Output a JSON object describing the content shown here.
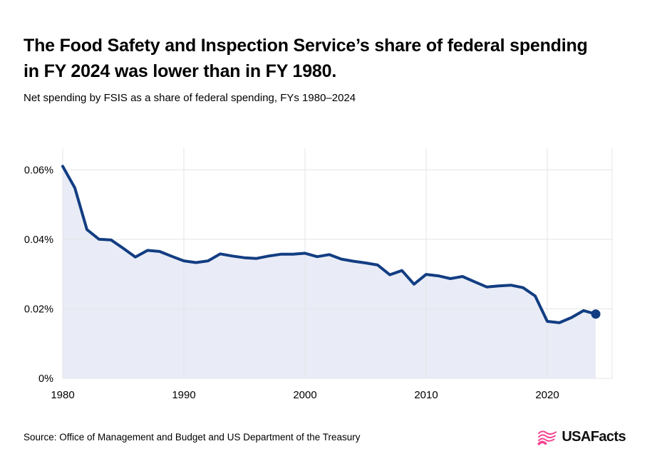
{
  "header": {
    "title": "The Food Safety and Inspection Service’s share of federal spending in FY 2024 was lower than in FY 1980.",
    "subtitle": "Net spending by FSIS as a share of federal spending, FYs 1980–2024"
  },
  "chart_data": {
    "type": "area",
    "title": "Net spending by FSIS as a share of federal spending, FYs 1980–2024",
    "xlabel": "",
    "ylabel": "",
    "unit": "% of federal spending",
    "x": [
      1980,
      1981,
      1982,
      1983,
      1984,
      1985,
      1986,
      1987,
      1988,
      1989,
      1990,
      1991,
      1992,
      1993,
      1994,
      1995,
      1996,
      1997,
      1998,
      1999,
      2000,
      2001,
      2002,
      2003,
      2004,
      2005,
      2006,
      2007,
      2008,
      2009,
      2010,
      2011,
      2012,
      2013,
      2014,
      2015,
      2016,
      2017,
      2018,
      2019,
      2020,
      2021,
      2022,
      2023,
      2024
    ],
    "values": [
      0.061,
      0.0548,
      0.0428,
      0.04,
      0.0398,
      0.0374,
      0.0349,
      0.0368,
      0.0365,
      0.0351,
      0.0338,
      0.0333,
      0.0338,
      0.0358,
      0.0352,
      0.0347,
      0.0345,
      0.0352,
      0.0357,
      0.0357,
      0.036,
      0.035,
      0.0356,
      0.0343,
      0.0337,
      0.0332,
      0.0326,
      0.0298,
      0.031,
      0.0271,
      0.0299,
      0.0295,
      0.0287,
      0.0293,
      0.0278,
      0.0263,
      0.0266,
      0.0268,
      0.0261,
      0.0237,
      0.0164,
      0.016,
      0.0175,
      0.0195,
      0.0185
    ],
    "x_ticks": [
      {
        "value": 1980,
        "label": "1980"
      },
      {
        "value": 1990,
        "label": "1990"
      },
      {
        "value": 2000,
        "label": "2000"
      },
      {
        "value": 2010,
        "label": "2010"
      },
      {
        "value": 2020,
        "label": "2020"
      }
    ],
    "y_ticks": [
      {
        "value": 0,
        "label": "0%"
      },
      {
        "value": 0.02,
        "label": "0.02%"
      },
      {
        "value": 0.04,
        "label": "0.04%"
      },
      {
        "value": 0.06,
        "label": "0.06%"
      }
    ],
    "xlim": [
      1980,
      2025.35
    ],
    "ylim": [
      0,
      0.0662
    ],
    "grid": true,
    "legend": "none",
    "end_dot_on_last_point": true,
    "colors": {
      "line": "#123d82",
      "fill": "#e9ecf6",
      "grid": "#e3e4e6",
      "tick_text": "#000000"
    }
  },
  "footer": {
    "source": "Source: Office of Management and Budget and US Department of the Treasury",
    "logo_text": "USAFacts",
    "logo_color": "#f5418d"
  }
}
